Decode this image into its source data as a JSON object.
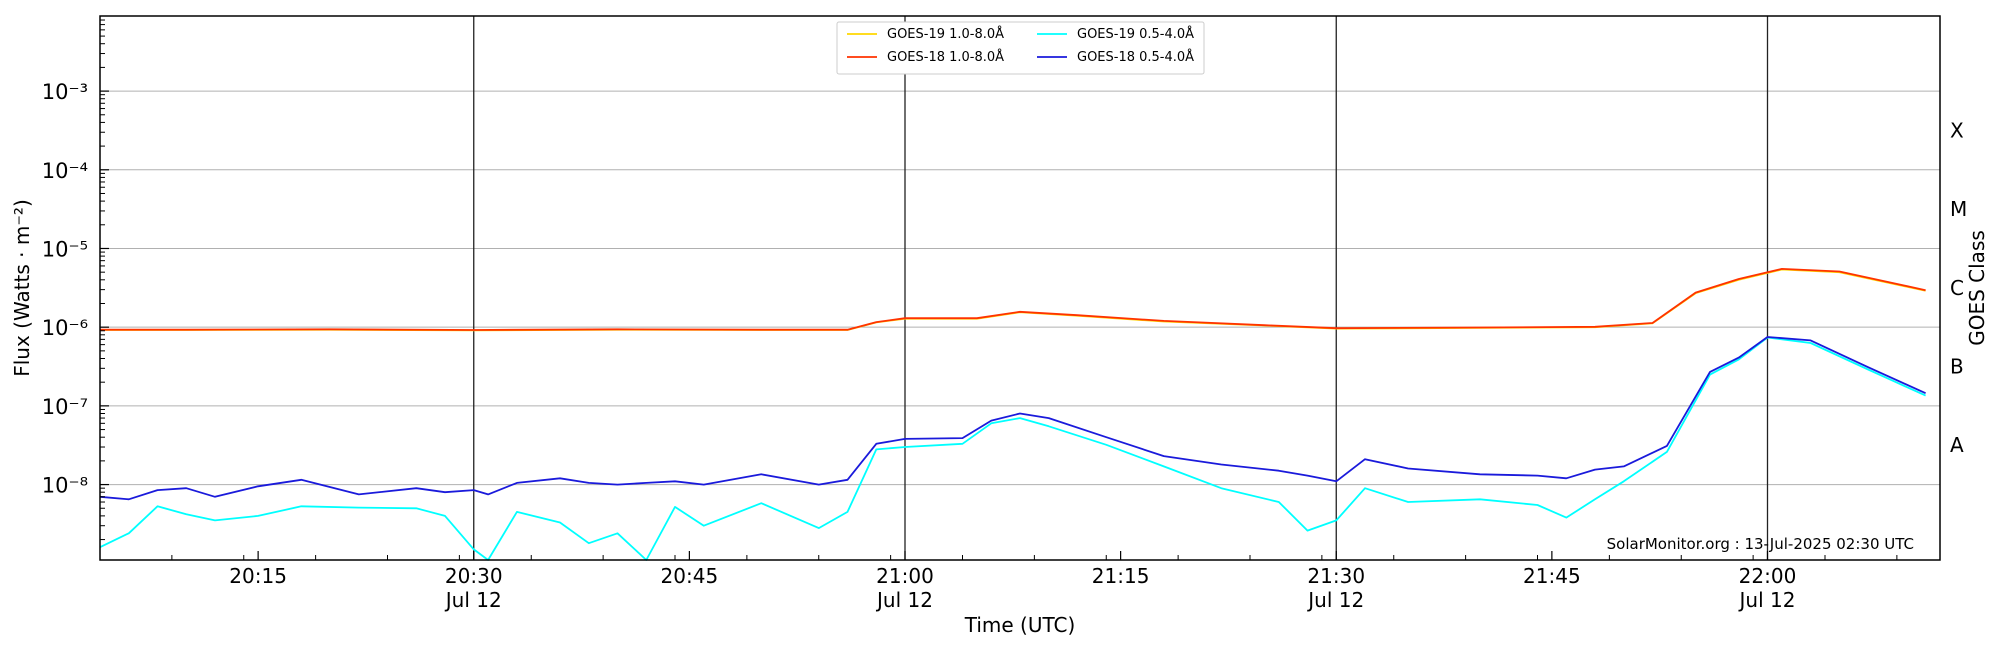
{
  "chart_data": {
    "type": "line",
    "xlabel": "Time (UTC)",
    "ylabel": "Flux (Watts · m⁻²)",
    "y2label": "GOES Class",
    "yscale": "log",
    "ylim": [
      1.1e-09,
      0.009
    ],
    "xlim": [
      "20:04",
      "22:12"
    ],
    "y_ticks": [
      {
        "value": 1e-08,
        "label": "10⁻⁸"
      },
      {
        "value": 1e-07,
        "label": "10⁻⁷"
      },
      {
        "value": 1e-06,
        "label": "10⁻⁶"
      },
      {
        "value": 1e-05,
        "label": "10⁻⁵"
      },
      {
        "value": 0.0001,
        "label": "10⁻⁴"
      },
      {
        "value": 0.001,
        "label": "10⁻³"
      }
    ],
    "x_ticks": [
      {
        "t": "20:15",
        "label": "20:15",
        "sub": ""
      },
      {
        "t": "20:30",
        "label": "20:30",
        "sub": "Jul 12"
      },
      {
        "t": "20:45",
        "label": "20:45",
        "sub": ""
      },
      {
        "t": "21:00",
        "label": "21:00",
        "sub": "Jul 12"
      },
      {
        "t": "21:15",
        "label": "21:15",
        "sub": ""
      },
      {
        "t": "21:30",
        "label": "21:30",
        "sub": "Jul 12"
      },
      {
        "t": "21:45",
        "label": "21:45",
        "sub": ""
      },
      {
        "t": "22:00",
        "label": "22:00",
        "sub": "Jul 12"
      }
    ],
    "goes_classes": [
      {
        "label": "X",
        "value": 0.000316
      },
      {
        "label": "M",
        "value": 3.16e-05
      },
      {
        "label": "C",
        "value": 3.16e-06
      },
      {
        "label": "B",
        "value": 3.16e-07
      },
      {
        "label": "A",
        "value": 3.16e-08
      }
    ],
    "grid": true,
    "legend_position": "top-center",
    "annotation": "SolarMonitor.org : 13-Jul-2025 02:30 UTC",
    "series": [
      {
        "name": "GOES-19 1.0-8.0Å",
        "color": "#ffd700",
        "x": [
          "20:04",
          "20:10",
          "20:20",
          "20:30",
          "20:40",
          "20:50",
          "20:56",
          "20:58",
          "21:00",
          "21:05",
          "21:08",
          "21:12",
          "21:18",
          "21:25",
          "21:30",
          "21:40",
          "21:48",
          "21:52",
          "21:55",
          "21:58",
          "22:01",
          "22:05",
          "22:11"
        ],
        "values": [
          9.2e-07,
          9.2e-07,
          9.3e-07,
          9.1e-07,
          9.3e-07,
          9.2e-07,
          9.2e-07,
          1.15e-06,
          1.28e-06,
          1.28e-06,
          1.55e-06,
          1.4e-06,
          1.18e-06,
          1.05e-06,
          9.6e-07,
          9.8e-07,
          1e-06,
          1.12e-06,
          2.7e-06,
          4e-06,
          5.4e-06,
          5e-06,
          2.9e-06
        ]
      },
      {
        "name": "GOES-18 1.0-8.0Å",
        "color": "#ff3300",
        "x": [
          "20:04",
          "20:10",
          "20:20",
          "20:30",
          "20:40",
          "20:50",
          "20:56",
          "20:58",
          "21:00",
          "21:05",
          "21:08",
          "21:12",
          "21:18",
          "21:25",
          "21:30",
          "21:40",
          "21:48",
          "21:52",
          "21:55",
          "21:58",
          "22:01",
          "22:05",
          "22:11"
        ],
        "values": [
          9.3e-07,
          9.3e-07,
          9.4e-07,
          9.2e-07,
          9.4e-07,
          9.3e-07,
          9.3e-07,
          1.16e-06,
          1.3e-06,
          1.3e-06,
          1.57e-06,
          1.42e-06,
          1.2e-06,
          1.06e-06,
          9.7e-07,
          9.9e-07,
          1.01e-06,
          1.13e-06,
          2.75e-06,
          4.1e-06,
          5.5e-06,
          5.1e-06,
          2.95e-06
        ]
      },
      {
        "name": "GOES-19 0.5-4.0Å",
        "color": "#00ffff",
        "x": [
          "20:04",
          "20:06",
          "20:08",
          "20:10",
          "20:12",
          "20:15",
          "20:18",
          "20:22",
          "20:26",
          "20:28",
          "20:30",
          "20:31",
          "20:33",
          "20:36",
          "20:38",
          "20:40",
          "20:42",
          "20:44",
          "20:46",
          "20:50",
          "20:54",
          "20:56",
          "20:58",
          "21:00",
          "21:04",
          "21:06",
          "21:08",
          "21:10",
          "21:14",
          "21:18",
          "21:22",
          "21:26",
          "21:28",
          "21:30",
          "21:32",
          "21:35",
          "21:40",
          "21:44",
          "21:46",
          "21:48",
          "21:50",
          "21:53",
          "21:56",
          "21:58",
          "22:00",
          "22:03",
          "22:07",
          "22:11"
        ],
        "values": [
          1.6e-09,
          2.4e-09,
          5.3e-09,
          4.2e-09,
          3.5e-09,
          4e-09,
          5.3e-09,
          5.1e-09,
          5e-09,
          4e-09,
          1.5e-09,
          1.1e-09,
          4.5e-09,
          3.3e-09,
          1.8e-09,
          2.4e-09,
          1.1e-09,
          5.2e-09,
          3e-09,
          5.8e-09,
          2.8e-09,
          4.5e-09,
          2.8e-08,
          3e-08,
          3.3e-08,
          6e-08,
          7e-08,
          5.5e-08,
          3.2e-08,
          1.7e-08,
          9e-09,
          6e-09,
          2.6e-09,
          3.5e-09,
          9e-09,
          6e-09,
          6.5e-09,
          5.5e-09,
          3.8e-09,
          6.5e-09,
          1.1e-08,
          2.6e-08,
          2.5e-07,
          3.9e-07,
          7.4e-07,
          6.3e-07,
          2.9e-07,
          1.35e-07
        ]
      },
      {
        "name": "GOES-18 0.5-4.0Å",
        "color": "#1a1adb",
        "x": [
          "20:04",
          "20:06",
          "20:08",
          "20:10",
          "20:12",
          "20:15",
          "20:18",
          "20:22",
          "20:26",
          "20:28",
          "20:30",
          "20:31",
          "20:33",
          "20:36",
          "20:38",
          "20:40",
          "20:42",
          "20:44",
          "20:46",
          "20:50",
          "20:54",
          "20:56",
          "20:58",
          "21:00",
          "21:04",
          "21:06",
          "21:08",
          "21:10",
          "21:14",
          "21:18",
          "21:22",
          "21:26",
          "21:28",
          "21:30",
          "21:32",
          "21:35",
          "21:40",
          "21:44",
          "21:46",
          "21:48",
          "21:50",
          "21:53",
          "21:56",
          "21:58",
          "22:00",
          "22:03",
          "22:07",
          "22:11"
        ],
        "values": [
          7e-09,
          6.5e-09,
          8.5e-09,
          9e-09,
          7e-09,
          9.5e-09,
          1.15e-08,
          7.5e-09,
          9e-09,
          8e-09,
          8.5e-09,
          7.5e-09,
          1.05e-08,
          1.2e-08,
          1.05e-08,
          1e-08,
          1.05e-08,
          1.1e-08,
          1e-08,
          1.35e-08,
          1e-08,
          1.15e-08,
          3.3e-08,
          3.8e-08,
          3.9e-08,
          6.5e-08,
          8e-08,
          7e-08,
          4e-08,
          2.3e-08,
          1.8e-08,
          1.5e-08,
          1.3e-08,
          1.1e-08,
          2.1e-08,
          1.6e-08,
          1.35e-08,
          1.3e-08,
          1.2e-08,
          1.55e-08,
          1.7e-08,
          3.1e-08,
          2.7e-07,
          4.1e-07,
          7.5e-07,
          6.8e-07,
          3.1e-07,
          1.45e-07
        ]
      }
    ]
  }
}
